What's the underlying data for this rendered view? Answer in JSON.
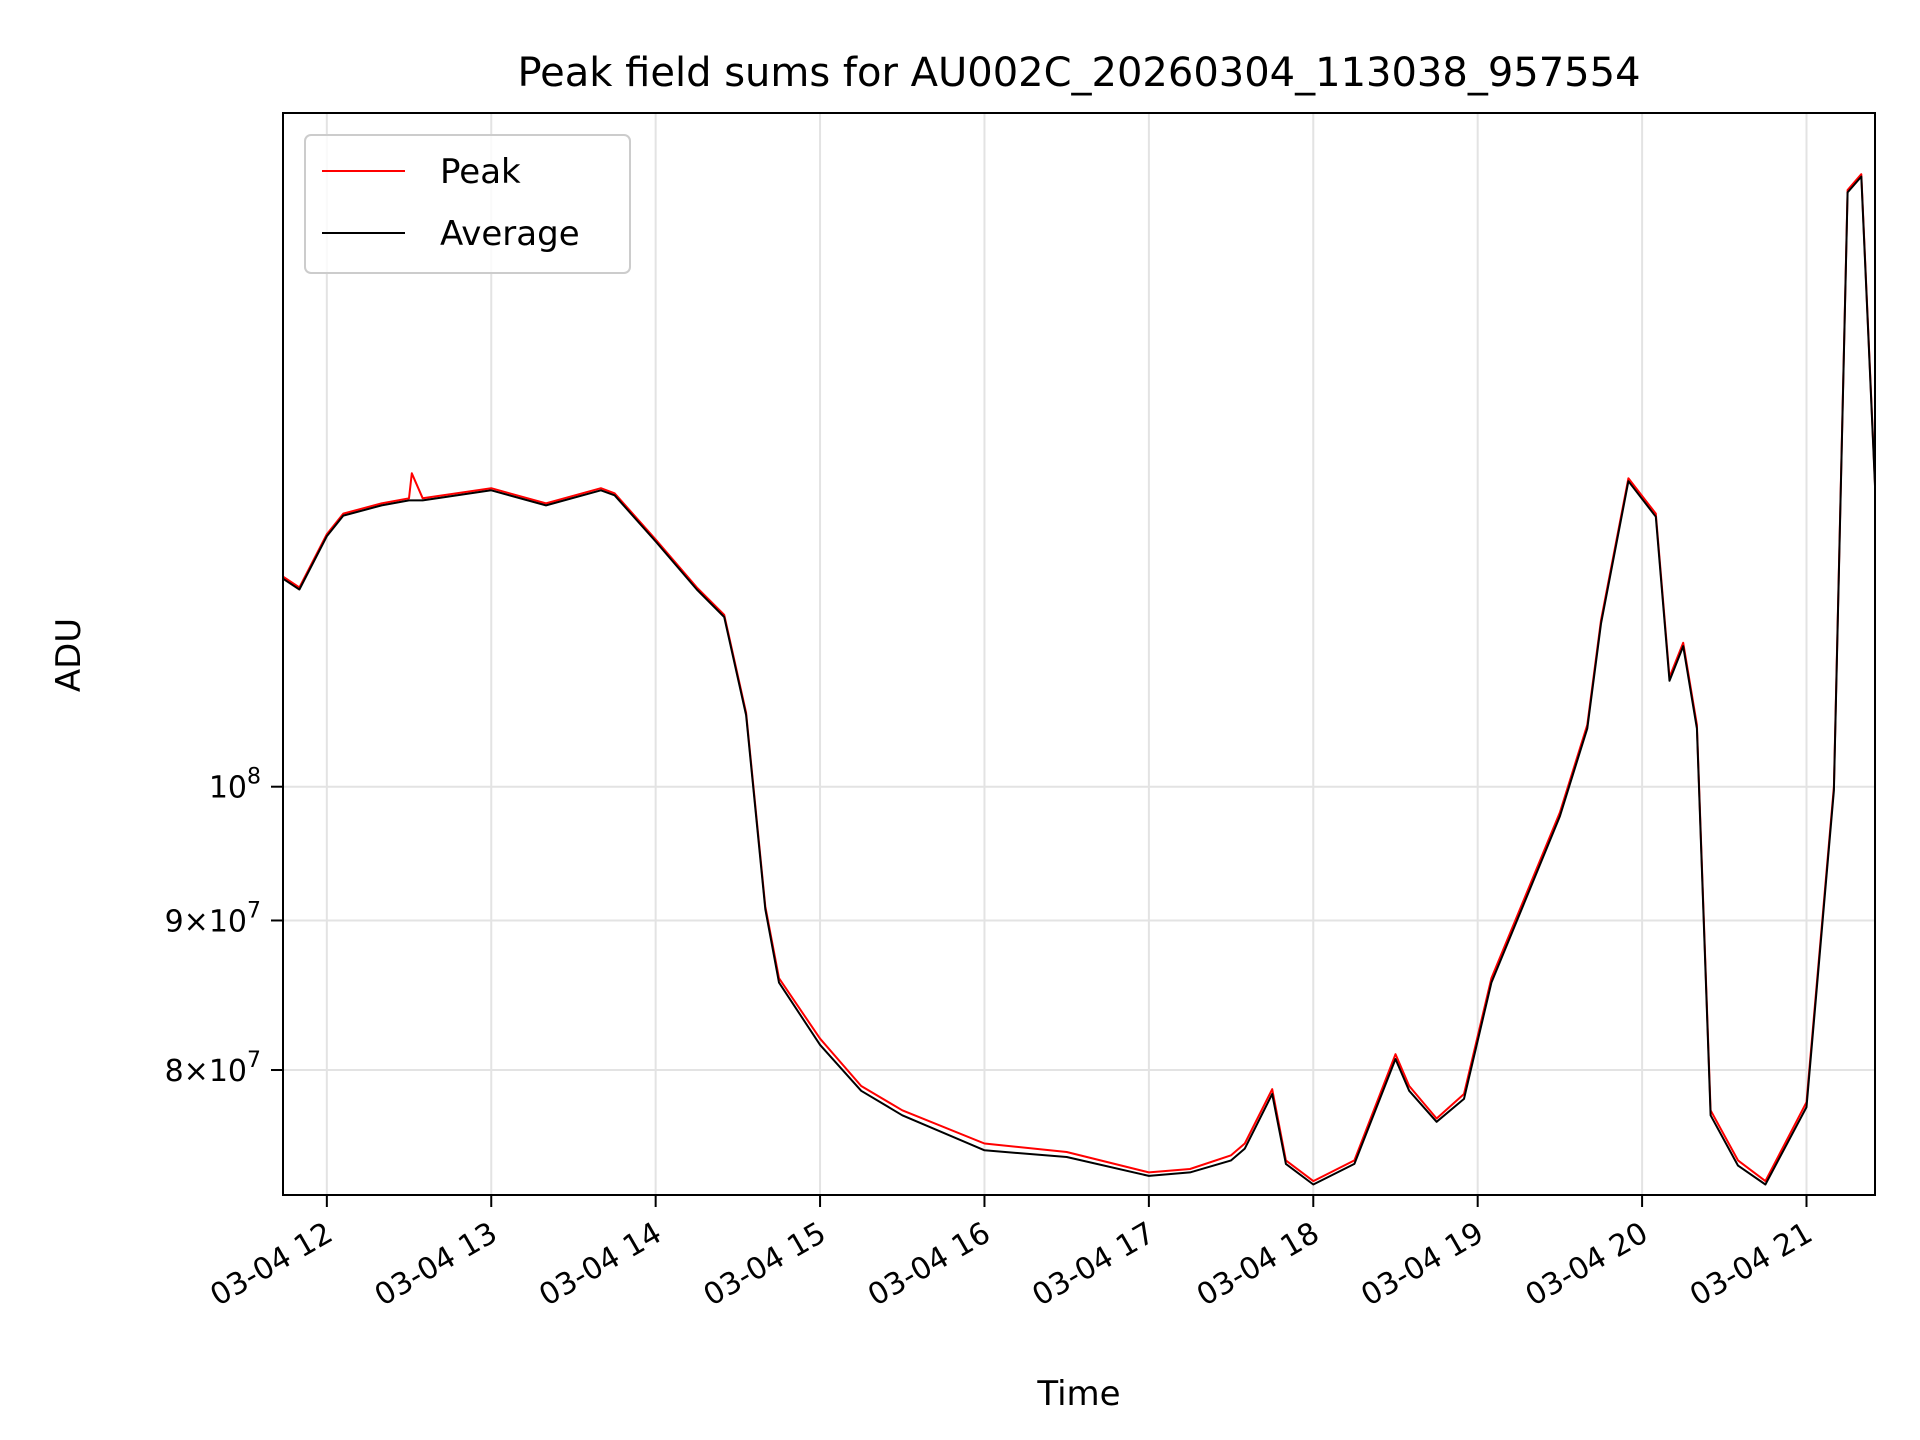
{
  "chart_data": {
    "type": "line",
    "title": "Peak field sums for AU002C_20260304_113038_957554",
    "xlabel": "Time",
    "ylabel": "ADU",
    "yscale": "log",
    "ylim": [
      72500000,
      170000000
    ],
    "xlim": [
      "2026-03-04T11:44",
      "2026-03-04T21:25"
    ],
    "grid": true,
    "legend_position": "top-left",
    "x_ticks": [
      {
        "t": "2026-03-04T12:00",
        "label": "03-04 12"
      },
      {
        "t": "2026-03-04T13:00",
        "label": "03-04 13"
      },
      {
        "t": "2026-03-04T14:00",
        "label": "03-04 14"
      },
      {
        "t": "2026-03-04T15:00",
        "label": "03-04 15"
      },
      {
        "t": "2026-03-04T16:00",
        "label": "03-04 16"
      },
      {
        "t": "2026-03-04T17:00",
        "label": "03-04 17"
      },
      {
        "t": "2026-03-04T18:00",
        "label": "03-04 18"
      },
      {
        "t": "2026-03-04T19:00",
        "label": "03-04 19"
      },
      {
        "t": "2026-03-04T20:00",
        "label": "03-04 20"
      },
      {
        "t": "2026-03-04T21:00",
        "label": "03-04 21"
      }
    ],
    "y_ticks": [
      {
        "value": 100000000,
        "mantissa": "",
        "base": "10",
        "exp": "8"
      },
      {
        "value": 90000000,
        "mantissa": "9",
        "base": "10",
        "exp": "7"
      },
      {
        "value": 80000000,
        "mantissa": "8",
        "base": "10",
        "exp": "7"
      }
    ],
    "series": [
      {
        "name": "Peak",
        "color": "#ff0000",
        "x": [
          "2026-03-04T11:44",
          "2026-03-04T11:50",
          "2026-03-04T12:00",
          "2026-03-04T12:06",
          "2026-03-04T12:20",
          "2026-03-04T12:30",
          "2026-03-04T12:31",
          "2026-03-04T12:35",
          "2026-03-04T13:00",
          "2026-03-04T13:20",
          "2026-03-04T13:40",
          "2026-03-04T13:45",
          "2026-03-04T14:00",
          "2026-03-04T14:15",
          "2026-03-04T14:25",
          "2026-03-04T14:33",
          "2026-03-04T14:40",
          "2026-03-04T14:45",
          "2026-03-04T15:00",
          "2026-03-04T15:15",
          "2026-03-04T15:30",
          "2026-03-04T16:00",
          "2026-03-04T16:30",
          "2026-03-04T17:00",
          "2026-03-04T17:15",
          "2026-03-04T17:30",
          "2026-03-04T17:35",
          "2026-03-04T17:45",
          "2026-03-04T17:50",
          "2026-03-04T18:00",
          "2026-03-04T18:15",
          "2026-03-04T18:30",
          "2026-03-04T18:35",
          "2026-03-04T18:45",
          "2026-03-04T18:55",
          "2026-03-04T19:05",
          "2026-03-04T19:20",
          "2026-03-04T19:30",
          "2026-03-04T19:40",
          "2026-03-04T19:45",
          "2026-03-04T19:55",
          "2026-03-04T20:05",
          "2026-03-04T20:10",
          "2026-03-04T20:15",
          "2026-03-04T20:20",
          "2026-03-04T20:25",
          "2026-03-04T20:35",
          "2026-03-04T20:45",
          "2026-03-04T21:00",
          "2026-03-04T21:10",
          "2026-03-04T21:15",
          "2026-03-04T21:20",
          "2026-03-04T21:25"
        ],
        "y": [
          118000000,
          117000000,
          122000000,
          124000000,
          125000000,
          125500000,
          128000000,
          125500000,
          126500000,
          125000000,
          126500000,
          126000000,
          121500000,
          117000000,
          114500000,
          106000000,
          91000000,
          86000000,
          82000000,
          79000000,
          77500000,
          75500000,
          75000000,
          73800000,
          74000000,
          74800000,
          75500000,
          78800000,
          74500000,
          73300000,
          74500000,
          81000000,
          79000000,
          77000000,
          78500000,
          86000000,
          93000000,
          98000000,
          105000000,
          114000000,
          127500000,
          124000000,
          109000000,
          112000000,
          105000000,
          77500000,
          74500000,
          73300000,
          78000000,
          100000000,
          160000000,
          162000000,
          127000000
        ]
      },
      {
        "name": "Average",
        "color": "#000000",
        "x": [
          "2026-03-04T11:44",
          "2026-03-04T11:50",
          "2026-03-04T12:00",
          "2026-03-04T12:06",
          "2026-03-04T12:20",
          "2026-03-04T12:30",
          "2026-03-04T12:35",
          "2026-03-04T13:00",
          "2026-03-04T13:20",
          "2026-03-04T13:40",
          "2026-03-04T13:45",
          "2026-03-04T14:00",
          "2026-03-04T14:15",
          "2026-03-04T14:25",
          "2026-03-04T14:33",
          "2026-03-04T14:40",
          "2026-03-04T14:45",
          "2026-03-04T15:00",
          "2026-03-04T15:15",
          "2026-03-04T15:30",
          "2026-03-04T16:00",
          "2026-03-04T16:30",
          "2026-03-04T17:00",
          "2026-03-04T17:15",
          "2026-03-04T17:30",
          "2026-03-04T17:35",
          "2026-03-04T17:45",
          "2026-03-04T17:50",
          "2026-03-04T18:00",
          "2026-03-04T18:15",
          "2026-03-04T18:30",
          "2026-03-04T18:35",
          "2026-03-04T18:45",
          "2026-03-04T18:55",
          "2026-03-04T19:05",
          "2026-03-04T19:20",
          "2026-03-04T19:30",
          "2026-03-04T19:40",
          "2026-03-04T19:45",
          "2026-03-04T19:55",
          "2026-03-04T20:05",
          "2026-03-04T20:10",
          "2026-03-04T20:15",
          "2026-03-04T20:20",
          "2026-03-04T20:25",
          "2026-03-04T20:35",
          "2026-03-04T20:45",
          "2026-03-04T21:00",
          "2026-03-04T21:10",
          "2026-03-04T21:15",
          "2026-03-04T21:20",
          "2026-03-04T21:25"
        ],
        "y": [
          117800000,
          116800000,
          121800000,
          123800000,
          124800000,
          125300000,
          125300000,
          126300000,
          124800000,
          126300000,
          125800000,
          121300000,
          116800000,
          114300000,
          105800000,
          90800000,
          85700000,
          81600000,
          78700000,
          77200000,
          75100000,
          74700000,
          73600000,
          73800000,
          74500000,
          75200000,
          78500000,
          74300000,
          73100000,
          74300000,
          80700000,
          78700000,
          76800000,
          78200000,
          85700000,
          92700000,
          97700000,
          104700000,
          113700000,
          127200000,
          123700000,
          108700000,
          111700000,
          104700000,
          77200000,
          74200000,
          73100000,
          77700000,
          99700000,
          159700000,
          161700000,
          126700000
        ]
      }
    ]
  }
}
